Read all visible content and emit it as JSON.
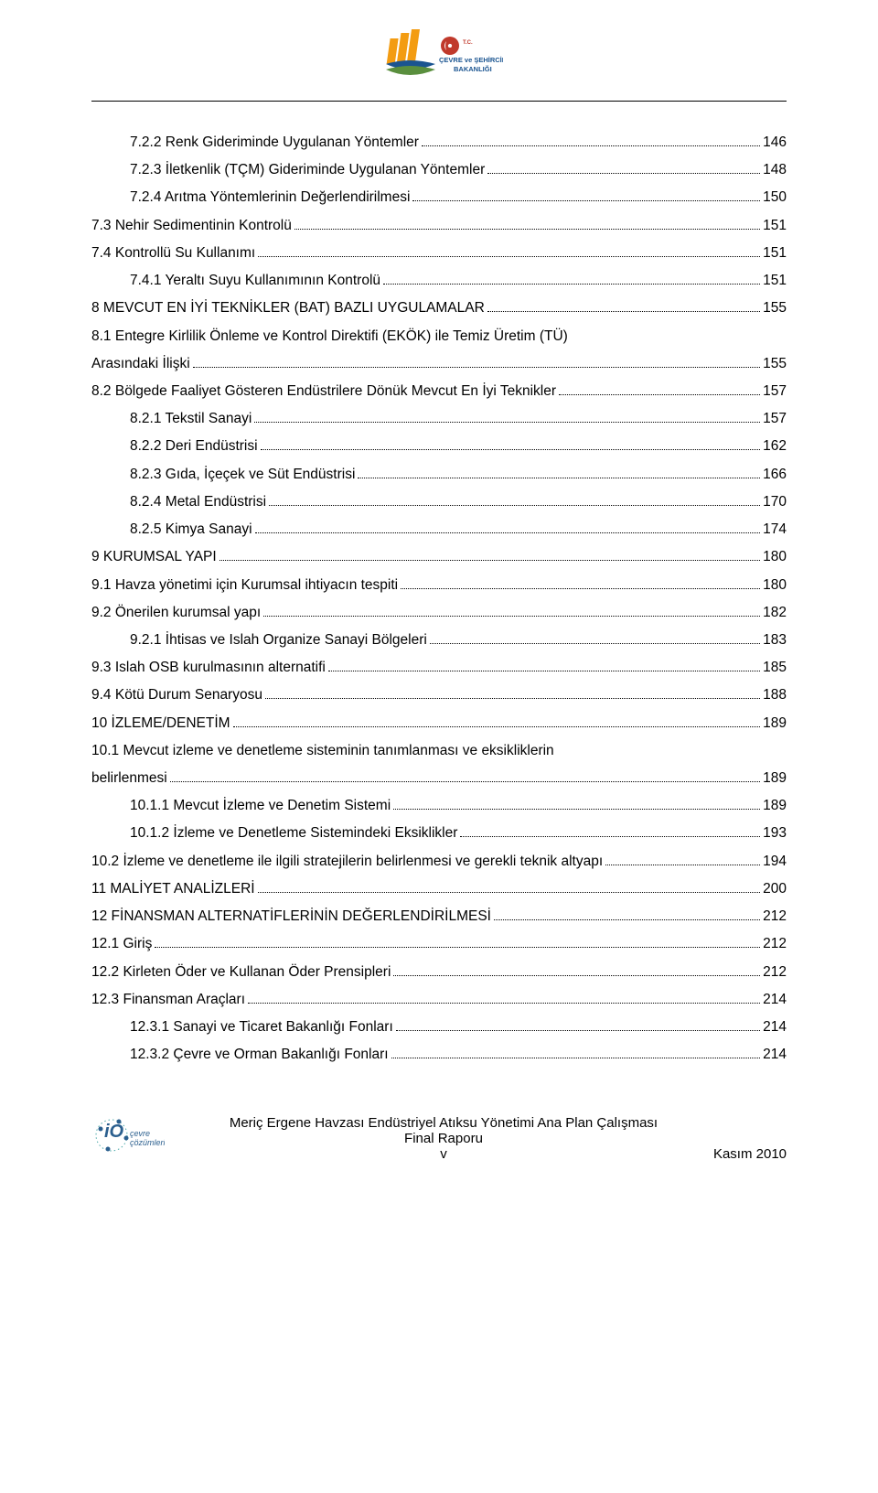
{
  "header": {
    "ministry_line1": "T.C.",
    "ministry_line2": "ÇEVRE ve ŞEHİRCİLİK",
    "ministry_line3": "BAKANLIĞI"
  },
  "footer": {
    "title": "Meriç Ergene Havzası Endüstriyel Atıksu Yönetimi Ana Plan Çalışması",
    "subtitle": "Final Raporu",
    "page": "v",
    "date": "Kasım 2010",
    "logo_text1": "çevre",
    "logo_text2": "çözümleri"
  },
  "colors": {
    "text": "#000000",
    "logo_orange": "#f39c12",
    "logo_blue": "#1a5490",
    "logo_red": "#c0392b",
    "footer_logo_blue": "#2b5f8e",
    "footer_logo_teal": "#4aa8a8"
  },
  "toc": [
    {
      "indent": 1,
      "label": "7.2.2 Renk Gideriminde Uygulanan Yöntemler",
      "page": "146"
    },
    {
      "indent": 1,
      "label": "7.2.3 İletkenlik (TÇM) Gideriminde Uygulanan Yöntemler",
      "page": "148"
    },
    {
      "indent": 1,
      "label": "7.2.4 Arıtma Yöntemlerinin Değerlendirilmesi",
      "page": "150"
    },
    {
      "indent": "1b",
      "label": "7.3   Nehir Sedimentinin Kontrolü",
      "page": "151"
    },
    {
      "indent": "1b",
      "label": "7.4   Kontrollü Su Kullanımı",
      "page": "151"
    },
    {
      "indent": 1,
      "label": "7.4.1 Yeraltı Suyu Kullanımının Kontrolü",
      "page": "151"
    },
    {
      "indent": 0,
      "label": "8    MEVCUT EN İYİ TEKNİKLER (BAT) BAZLI UYGULAMALAR",
      "page": "155"
    },
    {
      "indent": "1b",
      "label": "8.1   Entegre Kirlilik Önleme ve Kontrol Direktifi (EKÖK) ile Temiz Üretim (TÜ)",
      "wrap": true
    },
    {
      "indent": "1b",
      "label": "Arasındaki İlişki",
      "page": "155",
      "cont": true
    },
    {
      "indent": "1b",
      "label": "8.2   Bölgede Faaliyet Gösteren Endüstrilere Dönük Mevcut En İyi Teknikler",
      "page": "157"
    },
    {
      "indent": 1,
      "label": "8.2.1 Tekstil Sanayi",
      "page": "157"
    },
    {
      "indent": 1,
      "label": "8.2.2 Deri Endüstrisi",
      "page": "162"
    },
    {
      "indent": 1,
      "label": "8.2.3 Gıda, İçeçek ve Süt Endüstrisi",
      "page": "166"
    },
    {
      "indent": 1,
      "label": "8.2.4 Metal Endüstrisi",
      "page": "170"
    },
    {
      "indent": 1,
      "label": "8.2.5 Kimya Sanayi",
      "page": "174"
    },
    {
      "indent": 0,
      "label": "9    KURUMSAL YAPI",
      "page": "180"
    },
    {
      "indent": "1b",
      "label": "9.1   Havza yönetimi için Kurumsal ihtiyacın tespiti",
      "page": "180"
    },
    {
      "indent": "1b",
      "label": "9.2   Önerilen kurumsal yapı",
      "page": "182"
    },
    {
      "indent": 1,
      "label": "9.2.1 İhtisas ve Islah Organize Sanayi Bölgeleri",
      "page": "183"
    },
    {
      "indent": "1b",
      "label": "9.3   Islah OSB kurulmasının alternatifi",
      "page": "185"
    },
    {
      "indent": "1b",
      "label": "9.4   Kötü Durum Senaryosu",
      "page": "188"
    },
    {
      "indent": 0,
      "label": "10   İZLEME/DENETİM",
      "page": "189"
    },
    {
      "indent": "1b",
      "label": "10.1 Mevcut  izleme  ve  denetleme  sisteminin  tanımlanması  ve  eksikliklerin",
      "wrap": true
    },
    {
      "indent": "1b",
      "label": "belirlenmesi",
      "page": "189",
      "cont": true
    },
    {
      "indent": 1,
      "label": "10.1.1 Mevcut İzleme ve Denetim Sistemi",
      "page": "189"
    },
    {
      "indent": 1,
      "label": "10.1.2 İzleme ve Denetleme Sistemindeki Eksiklikler",
      "page": "193"
    },
    {
      "indent": "1b",
      "label": "10.2 İzleme ve denetleme ile ilgili stratejilerin belirlenmesi ve gerekli teknik altyapı",
      "page": "194"
    },
    {
      "indent": 0,
      "label": "11   MALİYET ANALİZLERİ",
      "page": "200"
    },
    {
      "indent": 0,
      "label": "12   FİNANSMAN ALTERNATİFLERİNİN DEĞERLENDİRİLMESİ",
      "page": "212"
    },
    {
      "indent": "1b",
      "label": "12.1 Giriş",
      "page": "212"
    },
    {
      "indent": "1b",
      "label": "12.2 Kirleten Öder ve Kullanan Öder Prensipleri",
      "page": "212"
    },
    {
      "indent": "1b",
      "label": "12.3 Finansman Araçları",
      "page": "214"
    },
    {
      "indent": 1,
      "label": "12.3.1 Sanayi ve Ticaret Bakanlığı Fonları",
      "page": "214"
    },
    {
      "indent": 1,
      "label": "12.3.2 Çevre ve Orman Bakanlığı Fonları",
      "page": "214"
    }
  ]
}
